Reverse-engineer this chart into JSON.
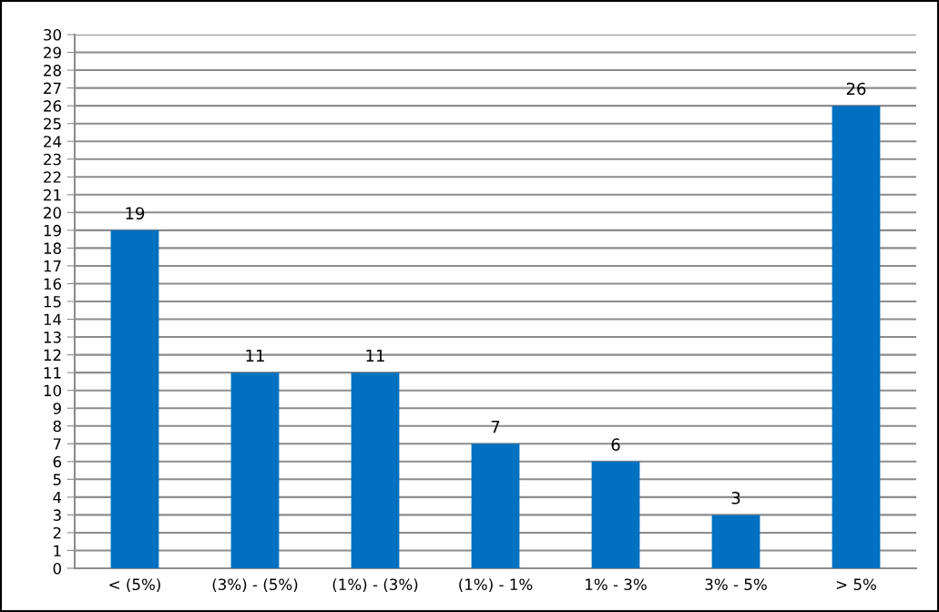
{
  "chart_data": {
    "type": "bar",
    "categories": [
      "< (5%)",
      "(3%) - (5%)",
      "(1%) - (3%)",
      "(1%) - 1%",
      "1% - 3%",
      "3% - 5%",
      "> 5%"
    ],
    "values": [
      19,
      11,
      11,
      7,
      6,
      3,
      26
    ],
    "color": "#0070c0",
    "ylim": [
      0,
      30
    ],
    "yticks": [
      0,
      1,
      2,
      3,
      4,
      5,
      6,
      7,
      8,
      9,
      10,
      11,
      12,
      13,
      14,
      15,
      16,
      17,
      18,
      19,
      20,
      21,
      22,
      23,
      24,
      25,
      26,
      27,
      28,
      29,
      30
    ],
    "grid": "y",
    "data_labels": true,
    "legend": false
  }
}
